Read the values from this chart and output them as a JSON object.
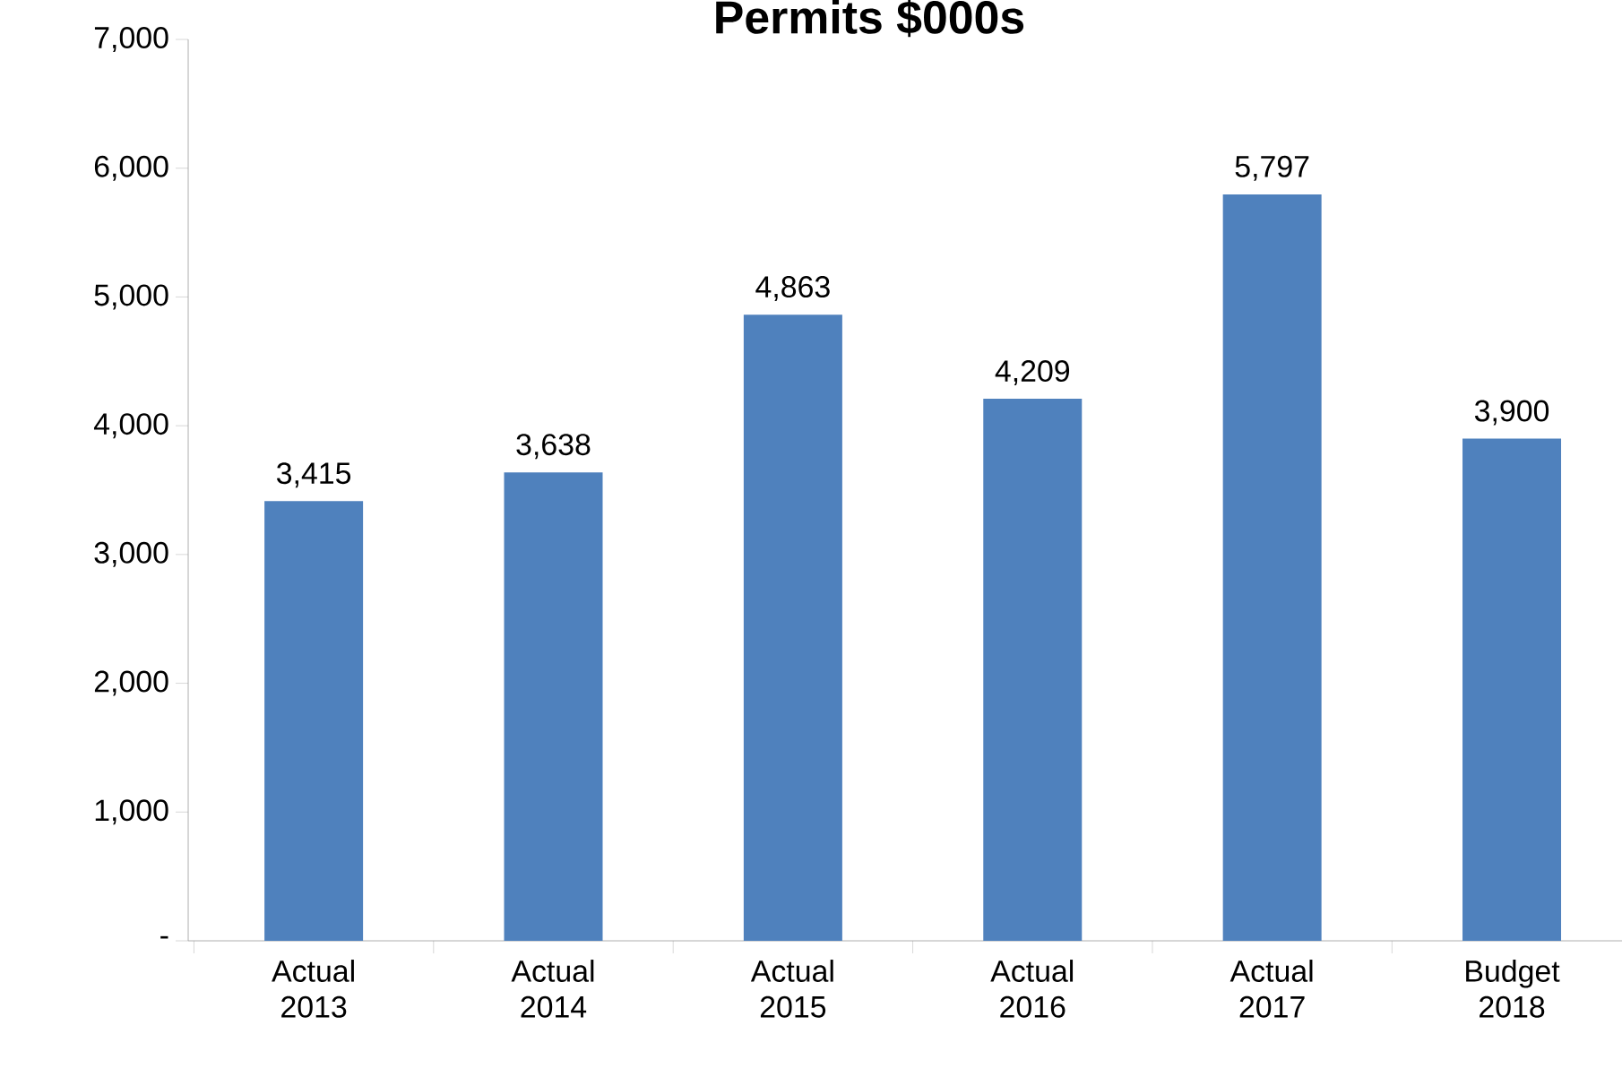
{
  "chart_data": {
    "type": "bar",
    "title": "Permits $000s",
    "categories": [
      "Actual 2013",
      "Actual 2014",
      "Actual 2015",
      "Actual 2016",
      "Actual 2017",
      "Budget 2018"
    ],
    "values": [
      3415,
      3638,
      4863,
      4209,
      5797,
      3900
    ],
    "value_labels": [
      "3,415",
      "3,638",
      "4,863",
      "4,209",
      "5,797",
      "3,900"
    ],
    "color": "#4f81bd",
    "ylim": [
      0,
      7000
    ],
    "yticks": [
      {
        "value": 0,
        "label": "-"
      },
      {
        "value": 1000,
        "label": "1,000"
      },
      {
        "value": 2000,
        "label": "2,000"
      },
      {
        "value": 3000,
        "label": "3,000"
      },
      {
        "value": 4000,
        "label": "4,000"
      },
      {
        "value": 5000,
        "label": "5,000"
      },
      {
        "value": 6000,
        "label": "6,000"
      },
      {
        "value": 7000,
        "label": "7,000"
      }
    ],
    "grid": false
  }
}
